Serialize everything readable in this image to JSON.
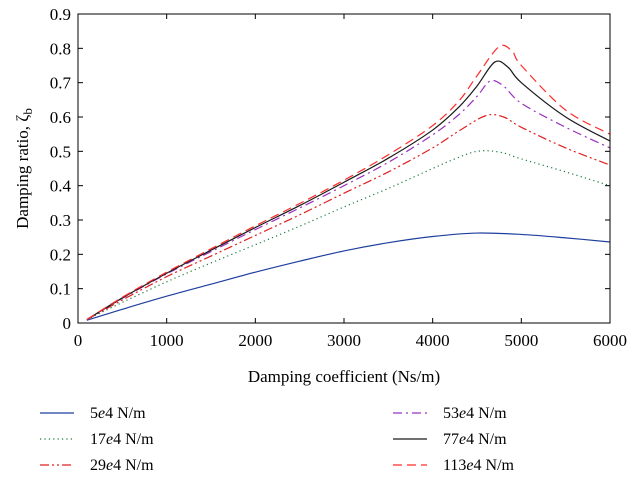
{
  "chart_data": {
    "type": "line",
    "xlabel": "Damping coefficient (Ns/m)",
    "ylabel": "Damping ratio, ζ",
    "ylabel_sub": "b",
    "xlim": [
      0,
      6000
    ],
    "ylim": [
      0,
      0.9
    ],
    "xticks": [
      0,
      1000,
      2000,
      3000,
      4000,
      5000,
      6000
    ],
    "yticks": [
      0,
      0.1,
      0.2,
      0.3,
      0.4,
      0.5,
      0.6,
      0.7,
      0.8,
      0.9
    ],
    "xtick_labels": [
      "0",
      "1000",
      "2000",
      "3000",
      "4000",
      "5000",
      "6000"
    ],
    "ytick_labels": [
      "0",
      "0.1",
      "0.2",
      "0.3",
      "0.4",
      "0.5",
      "0.6",
      "0.7",
      "0.8",
      "0.9"
    ],
    "grid": false,
    "legend_position": "below",
    "series": [
      {
        "name": "5e4 N/m",
        "name_num": "5",
        "name_exp": "e",
        "name_tail": "4 N/m",
        "color": "#1f3f9f",
        "dash": "solid",
        "x": [
          100,
          500,
          1000,
          1500,
          2000,
          2500,
          3000,
          3500,
          4000,
          4500,
          5000,
          5500,
          6000
        ],
        "y": [
          0.008,
          0.04,
          0.078,
          0.113,
          0.148,
          0.18,
          0.21,
          0.234,
          0.252,
          0.262,
          0.258,
          0.248,
          0.236
        ]
      },
      {
        "name": "17e4 N/m",
        "name_num": "17",
        "name_exp": "e",
        "name_tail": "4 N/m",
        "color": "#1a7a3a",
        "dash": "dotted",
        "x": [
          100,
          500,
          1000,
          1500,
          2000,
          2500,
          3000,
          3500,
          4000,
          4250,
          4500,
          4750,
          5000,
          5500,
          6000
        ],
        "y": [
          0.01,
          0.06,
          0.12,
          0.175,
          0.228,
          0.282,
          0.338,
          0.392,
          0.45,
          0.478,
          0.5,
          0.498,
          0.478,
          0.44,
          0.4
        ]
      },
      {
        "name": "29e4 N/m",
        "name_num": "29",
        "name_exp": "e",
        "name_tail": "4 N/m",
        "color": "#e02020",
        "dash": "dashdotdot",
        "x": [
          100,
          500,
          1000,
          1500,
          2000,
          2500,
          3000,
          3500,
          4000,
          4300,
          4600,
          4800,
          5000,
          5500,
          6000
        ],
        "y": [
          0.01,
          0.067,
          0.135,
          0.195,
          0.255,
          0.315,
          0.378,
          0.44,
          0.51,
          0.56,
          0.604,
          0.6,
          0.57,
          0.51,
          0.46
        ]
      },
      {
        "name": "53e4 N/m",
        "name_num": "53",
        "name_exp": "e",
        "name_tail": "4 N/m",
        "color": "#9a30c0",
        "dash": "dashdot",
        "x": [
          100,
          500,
          1000,
          1500,
          2000,
          2500,
          3000,
          3500,
          4000,
          4300,
          4500,
          4650,
          4800,
          5000,
          5500,
          6000
        ],
        "y": [
          0.01,
          0.072,
          0.143,
          0.208,
          0.272,
          0.335,
          0.4,
          0.468,
          0.548,
          0.608,
          0.66,
          0.705,
          0.69,
          0.64,
          0.57,
          0.51
        ]
      },
      {
        "name": "77e4 N/m",
        "name_num": "77",
        "name_exp": "e",
        "name_tail": "4 N/m",
        "color": "#1a1a1a",
        "dash": "solid",
        "x": [
          100,
          500,
          1000,
          1500,
          2000,
          2500,
          3000,
          3500,
          4000,
          4300,
          4500,
          4700,
          4850,
          5000,
          5500,
          6000
        ],
        "y": [
          0.01,
          0.073,
          0.145,
          0.212,
          0.278,
          0.342,
          0.41,
          0.48,
          0.562,
          0.63,
          0.69,
          0.76,
          0.745,
          0.7,
          0.6,
          0.53
        ]
      },
      {
        "name": "113e4 N/m",
        "name_num": "113",
        "name_exp": "e",
        "name_tail": "4 N/m",
        "color": "#ff2a2a",
        "dash": "dashed",
        "x": [
          100,
          500,
          1000,
          1500,
          2000,
          2500,
          3000,
          3500,
          4000,
          4300,
          4500,
          4750,
          4900,
          5000,
          5500,
          6000
        ],
        "y": [
          0.01,
          0.075,
          0.148,
          0.216,
          0.283,
          0.348,
          0.416,
          0.49,
          0.575,
          0.648,
          0.72,
          0.805,
          0.79,
          0.75,
          0.62,
          0.55
        ]
      }
    ]
  }
}
